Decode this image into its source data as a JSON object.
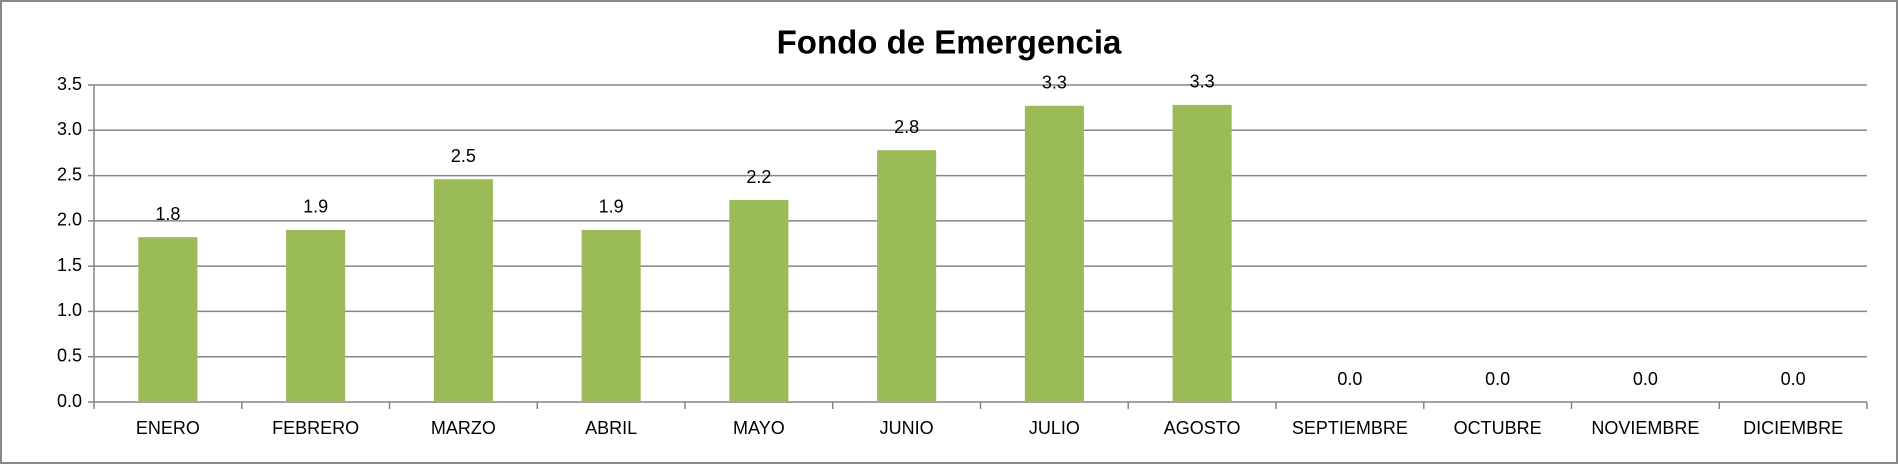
{
  "chart_data": {
    "type": "bar",
    "title": "Fondo de Emergencia",
    "categories": [
      "ENERO",
      "FEBRERO",
      "MARZO",
      "ABRIL",
      "MAYO",
      "JUNIO",
      "JULIO",
      "AGOSTO",
      "SEPTIEMBRE",
      "OCTUBRE",
      "NOVIEMBRE",
      "DICIEMBRE"
    ],
    "values": [
      1.82,
      1.9,
      2.46,
      1.9,
      2.23,
      2.78,
      3.27,
      3.28,
      0,
      0,
      0,
      0
    ],
    "value_labels": [
      "1.8",
      "1.9",
      "2.5",
      "1.9",
      "2.2",
      "2.8",
      "3.3",
      "3.3",
      "0.0",
      "0.0",
      "0.0",
      "0.0"
    ],
    "color": "#9bbb59",
    "ylim": [
      0,
      3.5
    ],
    "yticks": [
      {
        "value": 0,
        "label": "0.0"
      },
      0.5,
      {
        "value": 1,
        "label": "1.0"
      },
      1.5,
      {
        "value": 2,
        "label": "2.0"
      },
      2.5,
      {
        "value": 3,
        "label": "3.0"
      },
      3.5
    ],
    "grid": true
  }
}
